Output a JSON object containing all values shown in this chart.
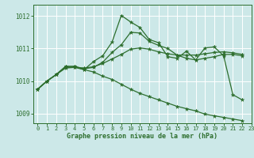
{
  "title": "Graphe pression niveau de la mer (hPa)",
  "bg_color": "#cce8e8",
  "line_color": "#2d6e2d",
  "grid_color": "#ffffff",
  "xlim": [
    -0.5,
    23
  ],
  "ylim": [
    1008.7,
    1012.35
  ],
  "yticks": [
    1009,
    1010,
    1011,
    1012
  ],
  "xticks": [
    0,
    1,
    2,
    3,
    4,
    5,
    6,
    7,
    8,
    9,
    10,
    11,
    12,
    13,
    14,
    15,
    16,
    17,
    18,
    19,
    20,
    21,
    22,
    23
  ],
  "s1_x": [
    0,
    1,
    2,
    3,
    4,
    5,
    6,
    7,
    8,
    9,
    10,
    11,
    12,
    13,
    14,
    15,
    16,
    17,
    18,
    19,
    20,
    21,
    22
  ],
  "s1_y": [
    1009.75,
    1010.0,
    1010.2,
    1010.45,
    1010.45,
    1010.35,
    1010.6,
    1010.78,
    1011.2,
    1012.02,
    1011.82,
    1011.65,
    1011.28,
    1011.18,
    1010.75,
    1010.7,
    1010.92,
    1010.65,
    1011.02,
    1011.05,
    1010.78,
    1009.58,
    1009.42
  ],
  "s2_x": [
    0,
    1,
    2,
    3,
    4,
    5,
    6,
    7,
    8,
    9,
    10,
    11,
    12,
    13,
    14,
    15,
    16,
    17,
    18,
    19,
    20,
    21,
    22
  ],
  "s2_y": [
    1009.75,
    1010.0,
    1010.2,
    1010.45,
    1010.45,
    1010.38,
    1010.42,
    1010.58,
    1010.88,
    1011.12,
    1011.5,
    1011.48,
    1011.22,
    1011.1,
    1011.0,
    1010.8,
    1010.7,
    1010.65,
    1010.7,
    1010.75,
    1010.82,
    1010.82,
    1010.78
  ],
  "s3_x": [
    0,
    1,
    2,
    3,
    4,
    5,
    6,
    7,
    8,
    9,
    10,
    11,
    12,
    13,
    14,
    15,
    16,
    17,
    18,
    19,
    20,
    21,
    22
  ],
  "s3_y": [
    1009.75,
    1010.0,
    1010.2,
    1010.42,
    1010.42,
    1010.4,
    1010.44,
    1010.54,
    1010.68,
    1010.82,
    1010.98,
    1011.02,
    1010.98,
    1010.9,
    1010.84,
    1010.8,
    1010.8,
    1010.8,
    1010.84,
    1010.88,
    1010.9,
    1010.87,
    1010.82
  ],
  "s4_x": [
    0,
    1,
    2,
    3,
    4,
    5,
    6,
    7,
    8,
    9,
    10,
    11,
    12,
    13,
    14,
    15,
    16,
    17,
    18,
    19,
    20,
    21,
    22
  ],
  "s4_y": [
    1009.75,
    1010.0,
    1010.2,
    1010.4,
    1010.42,
    1010.35,
    1010.28,
    1010.15,
    1010.05,
    1009.9,
    1009.75,
    1009.62,
    1009.52,
    1009.42,
    1009.32,
    1009.22,
    1009.15,
    1009.08,
    1008.98,
    1008.93,
    1008.88,
    1008.83,
    1008.78
  ]
}
